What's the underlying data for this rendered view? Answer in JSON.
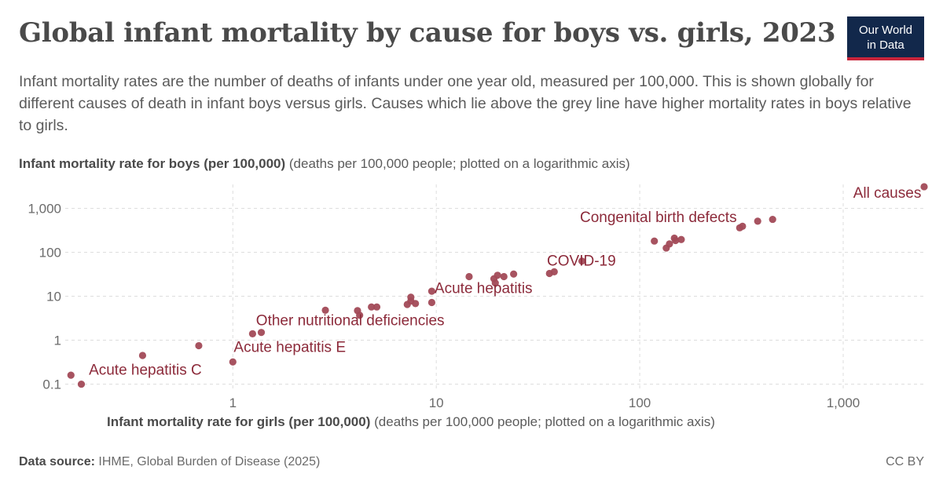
{
  "title": "Global infant mortality by cause for boys vs. girls, 2023",
  "subtitle": "Infant mortality rates are the number of deaths of infants under one year old, measured per 100,000. This is shown globally for different causes of death in infant boys versus girls. Causes which lie above the grey line have higher mortality rates in boys relative to girls.",
  "logo": {
    "line1": "Our World",
    "line2": "in Data"
  },
  "footer": {
    "source_label": "Data source:",
    "source_text": "IHME, Global Burden of Disease (2025)",
    "license": "CC BY"
  },
  "colors": {
    "point": "#a24a57",
    "annotation": "#8c2a3a",
    "grid": "#dddddd"
  },
  "chart_data": {
    "type": "scatter",
    "title": "Global infant mortality by cause for boys vs. girls, 2023",
    "xlabel_bold": "Infant mortality rate for girls (per 100,000)",
    "xlabel_rest": "(deaths per 100,000 people; plotted on a logarithmic axis)",
    "ylabel_bold": "Infant mortality rate for boys (per 100,000)",
    "ylabel_rest": "(deaths per 100,000 people; plotted on a logarithmic axis)",
    "x_scale": "log",
    "y_scale": "log",
    "xlim": [
      0.15,
      2500
    ],
    "ylim": [
      0.08,
      3500
    ],
    "x_ticks": [
      1,
      10,
      100,
      1000
    ],
    "x_tick_labels": [
      "1",
      "10",
      "100",
      "1,000"
    ],
    "y_ticks": [
      0.1,
      1,
      10,
      100,
      1000
    ],
    "y_tick_labels": [
      "0.1",
      "1",
      "10",
      "100",
      "1,000"
    ],
    "grid": true,
    "points": [
      {
        "label": "Acute hepatitis C",
        "x": 0.16,
        "y": 0.16
      },
      {
        "x": 0.18,
        "y": 0.1
      },
      {
        "x": 0.36,
        "y": 0.45
      },
      {
        "x": 0.68,
        "y": 0.75
      },
      {
        "label": "Acute hepatitis E",
        "x": 1.0,
        "y": 0.32
      },
      {
        "label": "Other nutritional deficiencies",
        "x": 1.25,
        "y": 1.4
      },
      {
        "x": 1.38,
        "y": 1.5
      },
      {
        "x": 2.85,
        "y": 4.8
      },
      {
        "x": 4.1,
        "y": 4.7
      },
      {
        "x": 4.2,
        "y": 3.7
      },
      {
        "x": 4.8,
        "y": 5.7
      },
      {
        "x": 5.1,
        "y": 5.7
      },
      {
        "x": 7.2,
        "y": 6.5
      },
      {
        "x": 7.5,
        "y": 9.5
      },
      {
        "x": 7.5,
        "y": 7.8
      },
      {
        "x": 7.9,
        "y": 6.8
      },
      {
        "label": "Acute hepatitis",
        "x": 9.5,
        "y": 13
      },
      {
        "x": 9.5,
        "y": 7.2
      },
      {
        "x": 14.5,
        "y": 28
      },
      {
        "x": 19.2,
        "y": 25
      },
      {
        "x": 19.5,
        "y": 20
      },
      {
        "x": 20,
        "y": 30
      },
      {
        "x": 21.5,
        "y": 28
      },
      {
        "x": 24,
        "y": 32
      },
      {
        "label": "COVID-19",
        "x": 36,
        "y": 33
      },
      {
        "x": 38,
        "y": 36
      },
      {
        "x": 52,
        "y": 63
      },
      {
        "x": 118,
        "y": 180
      },
      {
        "x": 135,
        "y": 125
      },
      {
        "x": 140,
        "y": 155
      },
      {
        "x": 148,
        "y": 210
      },
      {
        "x": 150,
        "y": 185
      },
      {
        "x": 160,
        "y": 195
      },
      {
        "label": "Congenital birth defects",
        "x": 310,
        "y": 360
      },
      {
        "x": 320,
        "y": 390
      },
      {
        "x": 380,
        "y": 510
      },
      {
        "x": 450,
        "y": 560
      },
      {
        "label": "All causes",
        "x": 2500,
        "y": 3100
      }
    ],
    "annotations": [
      {
        "text": "Acute hepatitis C",
        "x": 0.196,
        "y": 0.165,
        "anchor": "start"
      },
      {
        "text": "Acute hepatitis E",
        "x": 1.01,
        "y": 0.54,
        "anchor": "start"
      },
      {
        "text": "Other nutritional deficiencies",
        "x": 1.3,
        "y": 2.2,
        "anchor": "start"
      },
      {
        "text": "Acute hepatitis",
        "x": 9.8,
        "y": 11.8,
        "anchor": "start"
      },
      {
        "text": "COVID-19",
        "x": 35,
        "y": 50,
        "anchor": "start"
      },
      {
        "text": "Congenital birth defects",
        "x": 300,
        "y": 490,
        "anchor": "end"
      },
      {
        "text": "All causes",
        "x": 2420,
        "y": 1750,
        "anchor": "end"
      }
    ]
  }
}
